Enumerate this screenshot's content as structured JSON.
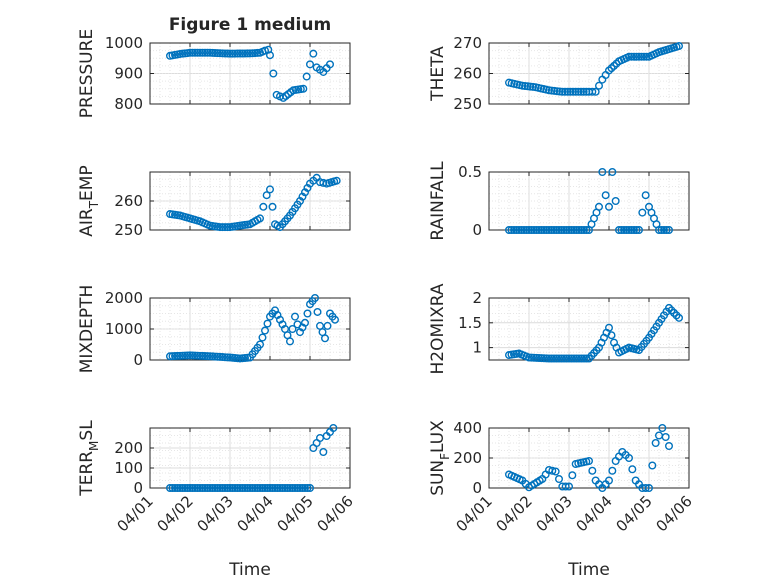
{
  "figure": {
    "title": "Figure 1 medium",
    "background": "#ffffff",
    "marker_color": "#0072bd"
  },
  "chart_data": [
    {
      "type": "scatter",
      "title": "Figure 1 medium",
      "ylabel": "PRESSURE",
      "xlabel": "",
      "ylim": [
        800,
        1000
      ],
      "yticks": [
        "800",
        "900",
        "1000"
      ],
      "grid": true,
      "xtick_labels_shown": false,
      "x": [
        "04/01 12:00",
        "04/01 18:00",
        "04/02 00:00",
        "04/02 12:00",
        "04/03 00:00",
        "04/03 12:00",
        "04/03 18:00",
        "04/03 21:00",
        "04/03 23:00",
        "04/04 00:00",
        "04/04 02:00",
        "04/04 04:00",
        "04/04 08:00",
        "04/04 14:00",
        "04/04 20:00",
        "04/05 00:00",
        "04/05 02:00",
        "04/05 04:00",
        "04/05 08:00",
        "04/05 12:00"
      ],
      "y": [
        958,
        964,
        968,
        968,
        965,
        966,
        968,
        975,
        978,
        960,
        900,
        830,
        820,
        845,
        850,
        930,
        965,
        920,
        905,
        930
      ]
    },
    {
      "type": "scatter",
      "ylabel": "THETA",
      "xlabel": "",
      "ylim": [
        250,
        270
      ],
      "yticks": [
        "250",
        "260",
        "270"
      ],
      "grid": true,
      "xtick_labels_shown": false,
      "x": [
        "04/01 12:00",
        "04/01 20:00",
        "04/02 04:00",
        "04/02 12:00",
        "04/02 20:00",
        "04/03 04:00",
        "04/03 12:00",
        "04/03 16:00",
        "04/03 20:00",
        "04/04 00:00",
        "04/04 06:00",
        "04/04 12:00",
        "04/04 18:00",
        "04/05 00:00",
        "04/05 06:00",
        "04/05 12:00",
        "04/05 18:00"
      ],
      "y": [
        257,
        256,
        255.5,
        254.5,
        254,
        254,
        254,
        254,
        258,
        261,
        264,
        265.5,
        265.5,
        265.5,
        267,
        268,
        269
      ]
    },
    {
      "type": "scatter",
      "ylabel": "AIR_TEMP",
      "xlabel": "",
      "ylim": [
        250,
        270
      ],
      "yticks": [
        "250",
        "260"
      ],
      "grid": true,
      "xtick_labels_shown": false,
      "x": [
        "04/01 12:00",
        "04/01 18:00",
        "04/02 00:00",
        "04/02 06:00",
        "04/02 12:00",
        "04/02 18:00",
        "04/03 00:00",
        "04/03 06:00",
        "04/03 12:00",
        "04/03 18:00",
        "04/03 22:00",
        "04/04 00:00",
        "04/04 03:00",
        "04/04 06:00",
        "04/04 12:00",
        "04/04 18:00",
        "04/05 00:00",
        "04/05 04:00",
        "04/05 06:00",
        "04/05 10:00",
        "04/05 16:00"
      ],
      "y": [
        255.5,
        255,
        254,
        253,
        251.5,
        251,
        251,
        251.5,
        252,
        254,
        262,
        264,
        252,
        251,
        255,
        260,
        266,
        268,
        266.5,
        266,
        267
      ]
    },
    {
      "type": "scatter",
      "ylabel": "RAINFALL",
      "xlabel": "",
      "ylim": [
        0,
        0.5
      ],
      "yticks": [
        "0",
        "0.5"
      ],
      "grid": true,
      "xtick_labels_shown": false,
      "x": [
        "04/01 12:00",
        "04/02 12:00",
        "04/03 12:00",
        "04/03 18:00",
        "04/03 20:00",
        "04/03 22:00",
        "04/04 00:00",
        "04/04 02:00",
        "04/04 06:00",
        "04/04 12:00",
        "04/04 18:00",
        "04/04 22:00",
        "04/05 00:00",
        "04/05 06:00",
        "04/05 12:00"
      ],
      "y": [
        0,
        0,
        0,
        0.2,
        0.5,
        0.3,
        0.2,
        0.5,
        0,
        0,
        0,
        0.3,
        0.2,
        0,
        0
      ]
    },
    {
      "type": "scatter",
      "ylabel": "MIXDEPTH",
      "xlabel": "",
      "ylim": [
        0,
        2000
      ],
      "yticks": [
        "0",
        "1000",
        "2000"
      ],
      "grid": true,
      "xtick_labels_shown": false,
      "x": [
        "04/01 12:00",
        "04/02 00:00",
        "04/02 12:00",
        "04/03 00:00",
        "04/03 06:00",
        "04/03 12:00",
        "04/03 18:00",
        "04/04 00:00",
        "04/04 03:00",
        "04/04 06:00",
        "04/04 09:00",
        "04/04 12:00",
        "04/04 15:00",
        "04/04 18:00",
        "04/04 21:00",
        "04/05 00:00",
        "04/05 03:00",
        "04/05 06:00",
        "04/05 09:00",
        "04/05 12:00",
        "04/05 15:00"
      ],
      "y": [
        120,
        150,
        120,
        80,
        50,
        80,
        500,
        1400,
        1600,
        1300,
        1000,
        600,
        1400,
        900,
        1200,
        1800,
        2000,
        1100,
        700,
        1500,
        1300
      ]
    },
    {
      "type": "scatter",
      "ylabel": "H2OMIXRA",
      "xlabel": "",
      "ylim": [
        0.75,
        2
      ],
      "yticks": [
        "1",
        "1.5",
        "2"
      ],
      "grid": true,
      "xtick_labels_shown": false,
      "x": [
        "04/01 12:00",
        "04/01 18:00",
        "04/02 00:00",
        "04/02 12:00",
        "04/03 00:00",
        "04/03 12:00",
        "04/03 18:00",
        "04/04 00:00",
        "04/04 03:00",
        "04/04 06:00",
        "04/04 12:00",
        "04/04 18:00",
        "04/05 00:00",
        "04/05 06:00",
        "04/05 12:00",
        "04/05 18:00"
      ],
      "y": [
        0.85,
        0.88,
        0.8,
        0.78,
        0.78,
        0.78,
        1.0,
        1.4,
        1.1,
        0.9,
        1.0,
        0.95,
        1.2,
        1.5,
        1.8,
        1.6
      ]
    },
    {
      "type": "scatter",
      "ylabel": "TERR_MSL",
      "xlabel": "Time",
      "ylim": [
        0,
        300
      ],
      "yticks": [
        "0",
        "100",
        "200"
      ],
      "grid": true,
      "xtick_labels_shown": true,
      "xticks": [
        "04/01",
        "04/02",
        "04/03",
        "04/04",
        "04/05",
        "04/06"
      ],
      "x": [
        "04/01 12:00",
        "04/02 00:00",
        "04/02 12:00",
        "04/03 00:00",
        "04/03 12:00",
        "04/04 00:00",
        "04/04 12:00",
        "04/05 00:00",
        "04/05 02:00",
        "04/05 06:00",
        "04/05 08:00",
        "04/05 10:00",
        "04/05 12:00",
        "04/05 14:00"
      ],
      "y": [
        0,
        0,
        0,
        0,
        0,
        0,
        0,
        0,
        200,
        250,
        180,
        260,
        280,
        300
      ]
    },
    {
      "type": "scatter",
      "ylabel": "SUN_FLUX",
      "xlabel": "Time",
      "ylim": [
        0,
        400
      ],
      "yticks": [
        "0",
        "200",
        "400"
      ],
      "grid": true,
      "xtick_labels_shown": true,
      "xticks": [
        "04/01",
        "04/02",
        "04/03",
        "04/04",
        "04/05",
        "04/06"
      ],
      "x": [
        "04/01 12:00",
        "04/01 20:00",
        "04/02 00:00",
        "04/02 08:00",
        "04/02 12:00",
        "04/02 16:00",
        "04/02 20:00",
        "04/03 00:00",
        "04/03 04:00",
        "04/03 12:00",
        "04/03 16:00",
        "04/03 20:00",
        "04/04 00:00",
        "04/04 04:00",
        "04/04 08:00",
        "04/04 12:00",
        "04/04 16:00",
        "04/04 20:00",
        "04/05 00:00",
        "04/05 04:00",
        "04/05 08:00",
        "04/05 12:00"
      ],
      "y": [
        90,
        50,
        5,
        60,
        120,
        110,
        10,
        10,
        160,
        180,
        50,
        0,
        50,
        180,
        240,
        200,
        50,
        0,
        0,
        300,
        400,
        280
      ]
    }
  ]
}
